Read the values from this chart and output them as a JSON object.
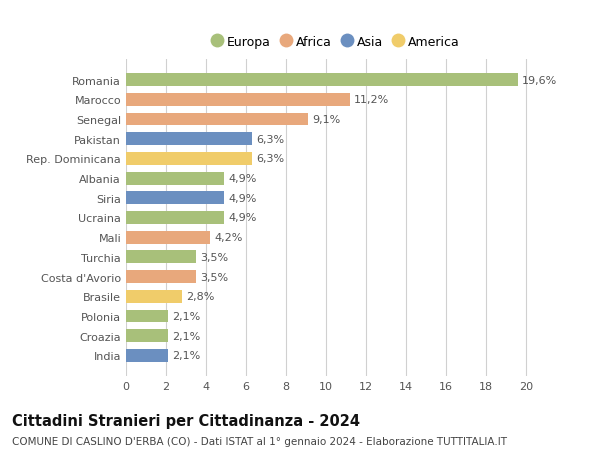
{
  "countries": [
    "Romania",
    "Marocco",
    "Senegal",
    "Pakistan",
    "Rep. Dominicana",
    "Albania",
    "Siria",
    "Ucraina",
    "Mali",
    "Turchia",
    "Costa d'Avorio",
    "Brasile",
    "Polonia",
    "Croazia",
    "India"
  ],
  "values": [
    19.6,
    11.2,
    9.1,
    6.3,
    6.3,
    4.9,
    4.9,
    4.9,
    4.2,
    3.5,
    3.5,
    2.8,
    2.1,
    2.1,
    2.1
  ],
  "labels": [
    "19,6%",
    "11,2%",
    "9,1%",
    "6,3%",
    "6,3%",
    "4,9%",
    "4,9%",
    "4,9%",
    "4,2%",
    "3,5%",
    "3,5%",
    "2,8%",
    "2,1%",
    "2,1%",
    "2,1%"
  ],
  "colors": [
    "#a8c07a",
    "#e8a87c",
    "#e8a87c",
    "#6b8fc0",
    "#f0cc6a",
    "#a8c07a",
    "#6b8fc0",
    "#a8c07a",
    "#e8a87c",
    "#a8c07a",
    "#e8a87c",
    "#f0cc6a",
    "#a8c07a",
    "#a8c07a",
    "#6b8fc0"
  ],
  "legend_labels": [
    "Europa",
    "Africa",
    "Asia",
    "America"
  ],
  "legend_colors": [
    "#a8c07a",
    "#e8a87c",
    "#6b8fc0",
    "#f0cc6a"
  ],
  "xlim": [
    0,
    21
  ],
  "xticks": [
    0,
    2,
    4,
    6,
    8,
    10,
    12,
    14,
    16,
    18,
    20
  ],
  "title": "Cittadini Stranieri per Cittadinanza - 2024",
  "subtitle": "COMUNE DI CASLINO D'ERBA (CO) - Dati ISTAT al 1° gennaio 2024 - Elaborazione TUTTITALIA.IT",
  "bg_color": "#ffffff",
  "grid_color": "#d0d0d0",
  "bar_height": 0.65,
  "label_fontsize": 8.0,
  "tick_fontsize": 8.0,
  "title_fontsize": 10.5,
  "subtitle_fontsize": 7.5
}
